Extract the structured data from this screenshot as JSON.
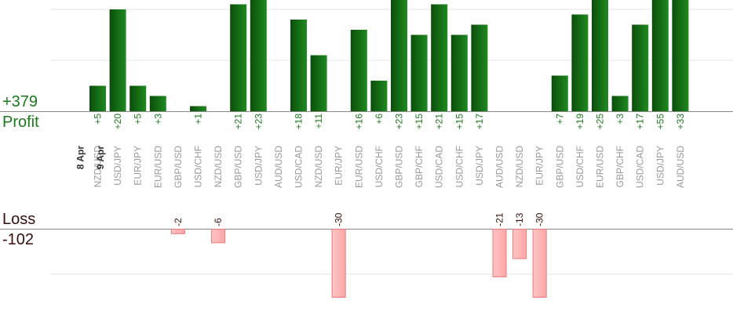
{
  "summary": {
    "profit_total": "+379",
    "profit_label": "Profit",
    "loss_label": "Loss",
    "loss_total": "-102"
  },
  "colors": {
    "profit_bar_dark": "#0b4d0b",
    "profit_bar_light": "#1f8a1f",
    "profit_text": "#1a7a1a",
    "loss_bar_fill": "#ffb3b3",
    "loss_bar_edge": "#f07a7a",
    "loss_text": "#3a0d0d",
    "axis_line": "#888888",
    "grid_line": "#e6e6e6",
    "category_text": "#999999",
    "date_text": "#333333"
  },
  "chart_data": {
    "type": "bar",
    "date_groups": [
      {
        "label": "8 Apr",
        "before_index": 0
      },
      {
        "label": "9 Apr",
        "before_index": 1
      }
    ],
    "categories": [
      "NZD/USD",
      "USD/JPY",
      "EUR/JPY",
      "EUR/USD",
      "GBP/USD",
      "USD/CHF",
      "NZD/USD",
      "GBP/USD",
      "USD/JPY",
      "AUD/USD",
      "USD/CAD",
      "NZD/USD",
      "EUR/JPY",
      "EUR/USD",
      "USD/CHF",
      "GBP/USD",
      "GBP/CHF",
      "USD/CAD",
      "USD/CHF",
      "USD/JPY",
      "AUD/USD",
      "NZD/USD",
      "EUR/JPY",
      "GBP/USD",
      "USD/CHF",
      "EUR/USD",
      "GBP/CHF",
      "USD/CAD",
      "USD/JPY",
      "AUD/USD"
    ],
    "profit": [
      5,
      20,
      5,
      3,
      null,
      1,
      null,
      21,
      23,
      null,
      18,
      11,
      null,
      16,
      6,
      23,
      15,
      21,
      15,
      17,
      null,
      null,
      null,
      7,
      19,
      25,
      3,
      17,
      55,
      33
    ],
    "loss": [
      null,
      null,
      null,
      null,
      -2,
      null,
      -6,
      null,
      null,
      null,
      null,
      null,
      -30,
      null,
      null,
      null,
      null,
      null,
      null,
      null,
      -21,
      -13,
      -30,
      null,
      null,
      null,
      null,
      null,
      null,
      null
    ],
    "profit_labels": [
      "+5",
      "+20",
      "+5",
      "+3",
      "",
      "+1",
      "",
      "+21",
      "+23",
      "",
      "+18",
      "+11",
      "",
      "+16",
      "+6",
      "+23",
      "+15",
      "+21",
      "+15",
      "+17",
      "",
      "",
      "",
      "+7",
      "+19",
      "+25",
      "+3",
      "+17",
      "+55",
      "+33"
    ],
    "loss_labels": [
      "",
      "",
      "",
      "",
      "-2",
      "",
      "-6",
      "",
      "",
      "",
      "",
      "",
      "-30",
      "",
      "",
      "",
      "",
      "",
      "",
      "",
      "-21",
      "-13",
      "-30",
      "",
      "",
      "",
      "",
      "",
      "",
      ""
    ],
    "profit_axis_max": 20,
    "loss_axis_min": -20,
    "grid": true
  }
}
